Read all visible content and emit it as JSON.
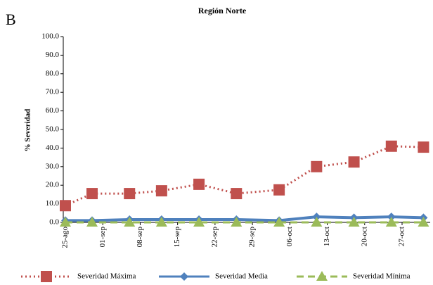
{
  "panel_label": "B",
  "chart_data": {
    "type": "line",
    "title": "Región Norte",
    "y_label": "% Severidad",
    "x": [
      "25-ago",
      "30-ago",
      "06-sep",
      "12-sep",
      "19-sep",
      "26-sep",
      "04-oct",
      "11-oct",
      "18-oct",
      "25-oct",
      "31-oct"
    ],
    "xticks": [
      "25-ago",
      "01-sep",
      "08-sep",
      "15-sep",
      "22-sep",
      "29-sep",
      "06-oct",
      "13-oct",
      "20-oct",
      "27-oct"
    ],
    "series": [
      {
        "name": "Severidad Máxima",
        "color": "#c0504d",
        "style": "dotted",
        "marker": "square",
        "values": [
          9.0,
          15.5,
          15.5,
          17.0,
          20.5,
          15.5,
          17.5,
          30.0,
          32.5,
          41.0,
          40.5
        ]
      },
      {
        "name": "Severidad Media",
        "color": "#4f81bd",
        "style": "solid",
        "marker": "diamond",
        "values": [
          1.0,
          1.0,
          1.5,
          1.5,
          1.5,
          1.5,
          1.0,
          3.0,
          2.5,
          3.0,
          2.5
        ]
      },
      {
        "name": "Severidad Mínima",
        "color": "#9bbb59",
        "style": "dashed",
        "marker": "triangle",
        "values": [
          0,
          0,
          0,
          0,
          0,
          0,
          0,
          0,
          0,
          0,
          0
        ]
      }
    ],
    "ylim": [
      0,
      100
    ],
    "yticks": [
      {
        "value": 0,
        "label": "0.0"
      },
      {
        "value": 10,
        "label": "10.0"
      },
      {
        "value": 20,
        "label": "20.0"
      },
      {
        "value": 30,
        "label": "30.0"
      },
      {
        "value": 40,
        "label": "40.0"
      },
      {
        "value": 50,
        "label": "50.0"
      },
      {
        "value": 60,
        "label": "60.0"
      },
      {
        "value": 70,
        "label": "70.0"
      },
      {
        "value": 80,
        "label": "80.0"
      },
      {
        "value": 90,
        "label": "90.0"
      },
      {
        "value": 100,
        "label": "100.0"
      }
    ],
    "legend": "bottom"
  }
}
